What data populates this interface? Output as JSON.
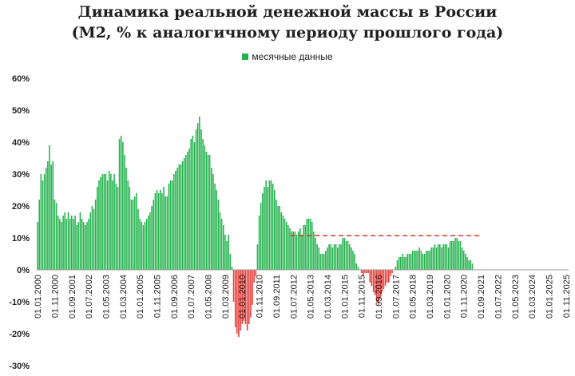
{
  "chart_data": {
    "type": "bar",
    "title": "Динамика реальной денежной массы в России",
    "subtitle": "(M2, % к аналогичному периоду прошлого года)",
    "legend": [
      {
        "label": "месячные данные",
        "color": "#22b24c"
      }
    ],
    "negative_color": "#e53935",
    "reference_line": {
      "value": 10.7,
      "x_start": "2012-06",
      "x_end": "2021-09",
      "style": "dashed",
      "color": "#d9352a"
    },
    "ylim": [
      -30,
      60
    ],
    "y_ticks": [
      "60%",
      "50%",
      "40%",
      "30%",
      "20%",
      "10%",
      "0%",
      "-10%",
      "-20%",
      "-30%"
    ],
    "x_ticks": [
      "01.01.2000",
      "01.11.2000",
      "01.09.2001",
      "01.07.2002",
      "01.05.2003",
      "01.03.2004",
      "01.01.2005",
      "01.11.2005",
      "01.09.2006",
      "01.07.2007",
      "01.05.2008",
      "01.03.2009",
      "01.01.2010",
      "01.11.2010",
      "01.09.2011",
      "01.07.2012",
      "01.05.2013",
      "01.03.2014",
      "01.01.2015",
      "01.11.2015",
      "01.09.2016",
      "01.07.2017",
      "01.05.2018",
      "01.03.2019",
      "01.01.2020",
      "01.11.2020",
      "01.09.2021",
      "01.07.2022",
      "01.05.2023",
      "01.03.2024",
      "01.01.2025",
      "01.11.2025"
    ],
    "x_start": "2000-01",
    "x_end": "2025-12",
    "series": [
      {
        "name": "месячные данные",
        "values": [
          15,
          22,
          30,
          28,
          30,
          32,
          34,
          39,
          33,
          34,
          22,
          21,
          17,
          16,
          15,
          17,
          18,
          16,
          18,
          16,
          17,
          16,
          17,
          14,
          15,
          18,
          16,
          15,
          14,
          15,
          16,
          18,
          20,
          19,
          22,
          26,
          28,
          29,
          30,
          30,
          30,
          28,
          31,
          30,
          28,
          30,
          27,
          26,
          41,
          42,
          40,
          36,
          32,
          28,
          26,
          22,
          22,
          23,
          24,
          19,
          16,
          15,
          14,
          15,
          16,
          17,
          18,
          20,
          22,
          24,
          25,
          24,
          25,
          24,
          26,
          23,
          23,
          27,
          28,
          28,
          30,
          31,
          32,
          33,
          33,
          34,
          35,
          36,
          37,
          38,
          41,
          42,
          40,
          44,
          46,
          48,
          44,
          41,
          39,
          37,
          36,
          36,
          32,
          30,
          27,
          25,
          22,
          18,
          16,
          14,
          11,
          9,
          11,
          5,
          1,
          -10,
          -18,
          -20,
          -21,
          -19,
          -17,
          -16,
          -17,
          -19,
          -17,
          -15,
          -11,
          -4,
          -2,
          8,
          17,
          21,
          24,
          26,
          28,
          26,
          28,
          28,
          27,
          25,
          22,
          20,
          20,
          18,
          17,
          16,
          15,
          14,
          13,
          12,
          12,
          12,
          11,
          12,
          13,
          11,
          14,
          14,
          16,
          16,
          16,
          15,
          12,
          10,
          8,
          7,
          5,
          5,
          5,
          6,
          7,
          8,
          8,
          7,
          8,
          8,
          7,
          8,
          8,
          10,
          10,
          9,
          9,
          8,
          7,
          6,
          5,
          2,
          1,
          0,
          -1,
          -2,
          -1,
          -1,
          -1,
          -4,
          -5,
          -7,
          -8,
          -10,
          -11,
          -9,
          -7,
          -6,
          -5,
          -4,
          -4,
          -2,
          -1,
          0,
          1,
          3,
          4,
          4,
          5,
          4,
          4,
          5,
          5,
          5,
          6,
          6,
          6,
          6,
          7,
          6,
          5,
          5,
          6,
          6,
          6,
          7,
          7,
          8,
          7,
          8,
          8,
          7,
          8,
          8,
          8,
          7,
          9,
          9,
          9,
          10,
          10,
          9,
          9,
          7,
          6,
          5,
          4,
          3,
          3,
          2
        ]
      }
    ]
  }
}
